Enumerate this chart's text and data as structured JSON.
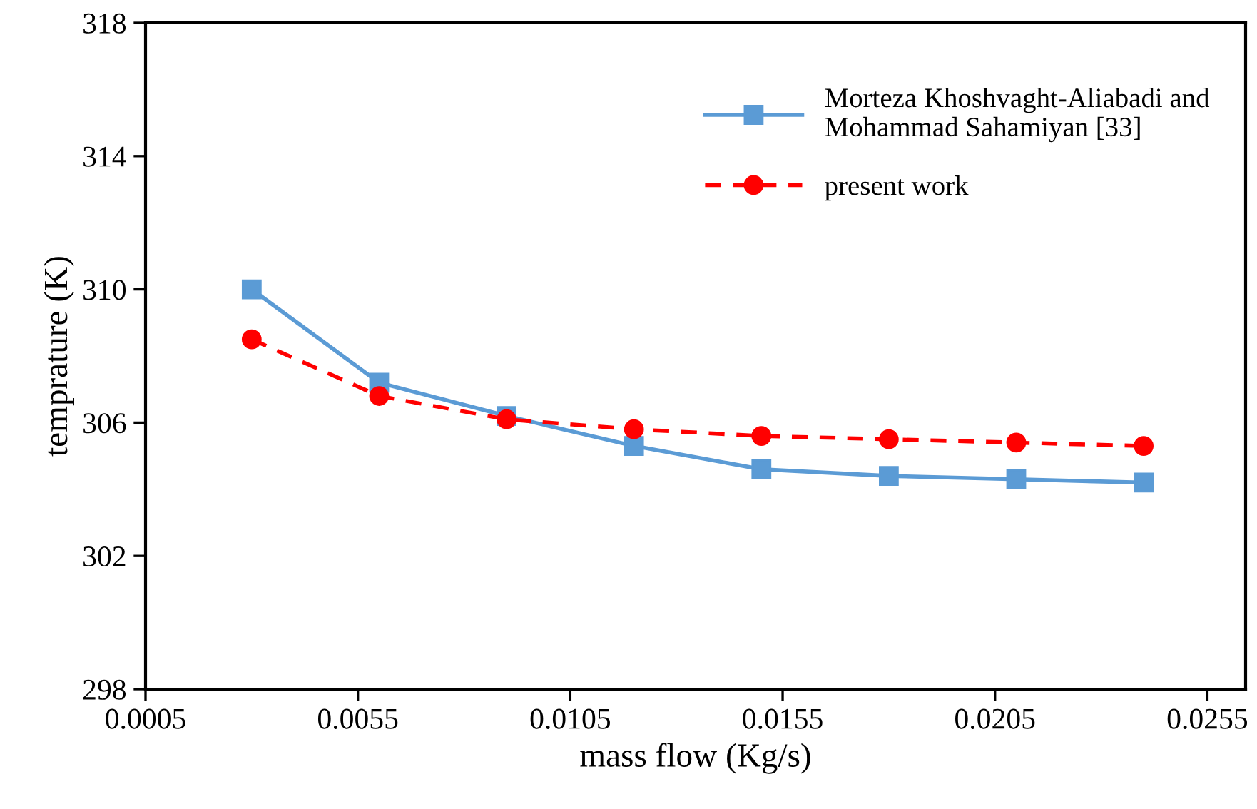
{
  "chart_data": {
    "type": "line",
    "xlabel": "mass flow (Kg/s)",
    "ylabel": "temprature (K)",
    "x": [
      0.003,
      0.006,
      0.009,
      0.012,
      0.015,
      0.018,
      0.021,
      0.024
    ],
    "series": [
      {
        "name": "Morteza Khoshvaght-Aliabadi and\nMohammad Sahamiyan [33]",
        "color": "#5b9bd5",
        "marker": "square",
        "line_style": "solid",
        "values": [
          310.0,
          307.2,
          306.2,
          305.3,
          304.6,
          304.4,
          304.3,
          304.2
        ]
      },
      {
        "name": "present work",
        "color": "#ff0000",
        "marker": "circle",
        "line_style": "dashed",
        "values": [
          308.5,
          306.8,
          306.1,
          305.8,
          305.6,
          305.5,
          305.4,
          305.3
        ]
      }
    ],
    "xlim": [
      0.0005,
      0.0264
    ],
    "xticks": [
      {
        "value": 0.0005,
        "label": "0.0005"
      },
      {
        "value": 0.0055,
        "label": "0.0055"
      },
      {
        "value": 0.0105,
        "label": "0.0105"
      },
      {
        "value": 0.0155,
        "label": "0.0155"
      },
      {
        "value": 0.0205,
        "label": "0.0205"
      },
      {
        "value": 0.0255,
        "label": "0.0255"
      }
    ],
    "ylim": [
      298,
      318
    ],
    "yticks": [
      298,
      302,
      306,
      310,
      314,
      318
    ],
    "grid": false,
    "legend": "top right"
  }
}
